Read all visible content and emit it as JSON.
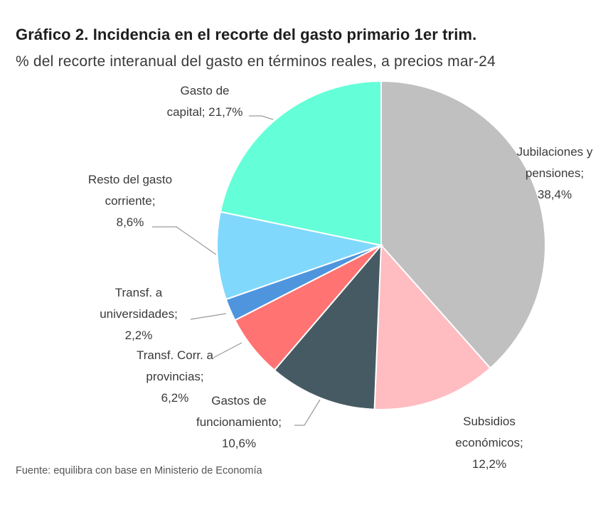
{
  "title": "Gráfico 2. Incidencia en el recorte del gasto primario 1er trim.",
  "subtitle": "% del recorte interanual del gasto en términos reales, a precios mar-24",
  "source": "Fuente: equilibra con base en Ministerio de Economía",
  "chart_data": {
    "type": "pie",
    "title": "Gráfico 2. Incidencia en el recorte del gasto primario 1er trim.",
    "subtitle": "% del recorte interanual del gasto en términos reales, a precios mar-24",
    "unit": "%",
    "slices": [
      {
        "name": "Jubilaciones y pensiones",
        "value": 38.4,
        "color": "#c0c0c0",
        "label_lines": [
          "Jubilaciones y",
          "pensiones;",
          "38,4%"
        ]
      },
      {
        "name": "Subsidios económicos",
        "value": 12.2,
        "color": "#ffbcc1",
        "label_lines": [
          "Subsidios",
          "económicos;",
          "12,2%"
        ]
      },
      {
        "name": "Gastos de funcionamiento",
        "value": 10.6,
        "color": "#465a63",
        "label_lines": [
          "Gastos de",
          "funcionamiento;",
          "10,6%"
        ]
      },
      {
        "name": "Transf. Corr. a provincias",
        "value": 6.2,
        "color": "#ff7373",
        "label_lines": [
          "Transf. Corr. a",
          "provincias;",
          "6,2%"
        ]
      },
      {
        "name": "Transf. a universidades",
        "value": 2.2,
        "color": "#4e95de",
        "label_lines": [
          "Transf. a",
          "universidades;",
          "2,2%"
        ]
      },
      {
        "name": "Resto del gasto corriente",
        "value": 8.6,
        "color": "#80d8fd",
        "label_lines": [
          "Resto del gasto",
          "corriente;",
          "8,6%"
        ]
      },
      {
        "name": "Gasto de capital",
        "value": 21.7,
        "color": "#64ffd8",
        "label_lines": [
          "Gasto de",
          "capital; 21,7%"
        ]
      }
    ],
    "start": "12 o'clock",
    "direction": "clockwise",
    "legend": "none"
  }
}
